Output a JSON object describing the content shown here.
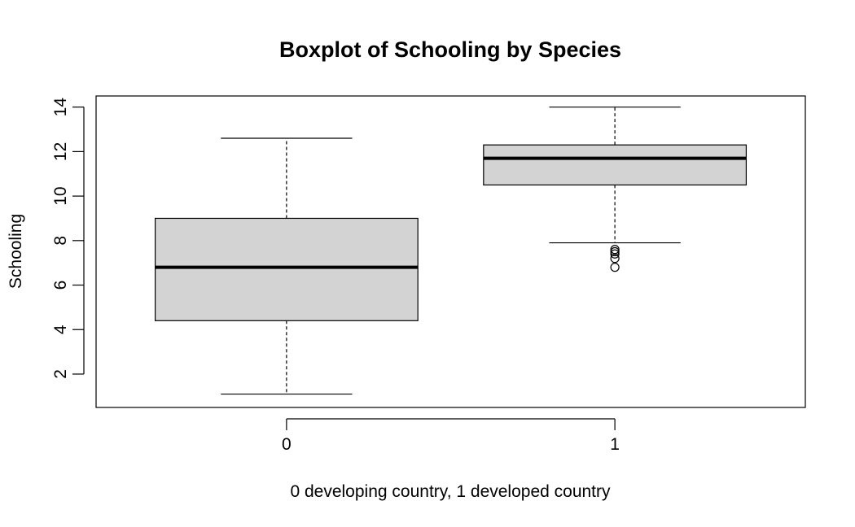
{
  "chart_data": {
    "type": "boxplot",
    "title": "Boxplot of Schooling by Species",
    "xlabel": "0 developing country, 1 developed country",
    "ylabel": "Schooling",
    "categories": [
      "0",
      "1"
    ],
    "ylim": [
      0.5,
      14.5
    ],
    "yticks": [
      "2",
      "4",
      "6",
      "8",
      "10",
      "12",
      "14"
    ],
    "grid": false,
    "legend": "none",
    "box_fill": "#d3d3d3",
    "boxes": [
      {
        "category": "0",
        "whisker_low": 1.1,
        "q1": 4.4,
        "median": 6.8,
        "q3": 9.0,
        "whisker_high": 12.6,
        "outliers": []
      },
      {
        "category": "1",
        "whisker_low": 7.9,
        "q1": 10.5,
        "median": 11.7,
        "q3": 12.3,
        "whisker_high": 14.0,
        "outliers": [
          7.6,
          7.5,
          7.4,
          7.2,
          6.8
        ]
      }
    ]
  }
}
